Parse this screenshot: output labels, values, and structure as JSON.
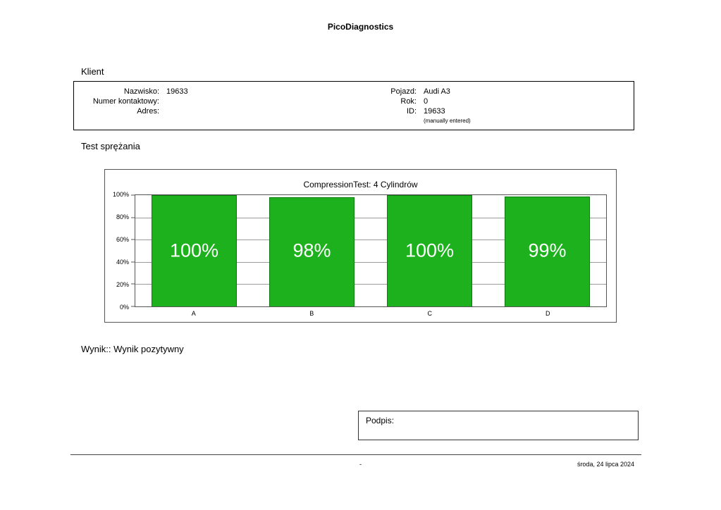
{
  "header": {
    "app_title": "PicoDiagnostics"
  },
  "client": {
    "section_label": "Klient",
    "fields_left": [
      {
        "label": "Nazwisko:",
        "value": "19633"
      },
      {
        "label": "Numer kontaktowy:",
        "value": ""
      },
      {
        "label": "Adres:",
        "value": ""
      }
    ],
    "fields_right": [
      {
        "label": "Pojazd:",
        "value": "Audi A3"
      },
      {
        "label": "Rok:",
        "value": "0"
      },
      {
        "label": "ID:",
        "value": "19633"
      }
    ],
    "id_note": "(manually entered)"
  },
  "test": {
    "section_label": "Test sprężania"
  },
  "chart_data": {
    "type": "bar",
    "title": "CompressionTest: 4 Cylindrów",
    "categories": [
      "A",
      "B",
      "C",
      "D"
    ],
    "values": [
      100,
      98,
      100,
      99
    ],
    "value_labels": [
      "100%",
      "98%",
      "100%",
      "99%"
    ],
    "y_ticks": [
      "100%",
      "80%",
      "60%",
      "40%",
      "20%",
      "0%"
    ],
    "ylim": [
      0,
      100
    ],
    "xlabel": "",
    "ylabel": "",
    "grid": true,
    "legend": "none",
    "bar_color": "#1db21d"
  },
  "result": {
    "text": "Wynik:: Wynik pozytywny"
  },
  "signature": {
    "label": "Podpis:"
  },
  "footer": {
    "center": "-",
    "right": "środa, 24 lipca 2024"
  }
}
